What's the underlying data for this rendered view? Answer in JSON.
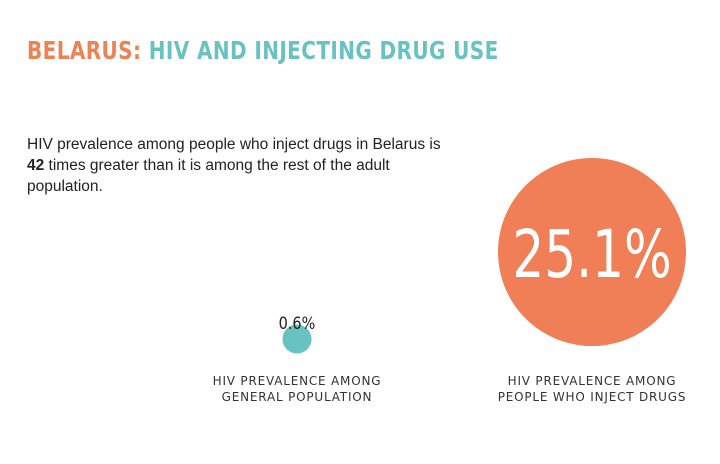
{
  "header": {
    "country": "BELARUS:",
    "topic": "HIV AND INJECTING DRUG USE"
  },
  "intro": {
    "before": "HIV prevalence among people who inject drugs in Belarus is ",
    "highlight": "42",
    "after": " times greater than it is among the rest of the adult population."
  },
  "colors": {
    "country": "#ee8255",
    "topic": "#67c2c1",
    "pwid_circle": "#f07e57",
    "general_dot": "#67c2c1"
  },
  "chart_data": {
    "type": "bubble",
    "series": [
      {
        "category_line1": "HIV PREVALENCE AMONG",
        "category_line2": "GENERAL POPULATION",
        "value": 0.6,
        "value_label": "0.6%"
      },
      {
        "category_line1": "HIV PREVALENCE AMONG",
        "category_line2": "PEOPLE WHO INJECT DRUGS",
        "value": 25.1,
        "value_label": "25.1%"
      }
    ]
  }
}
